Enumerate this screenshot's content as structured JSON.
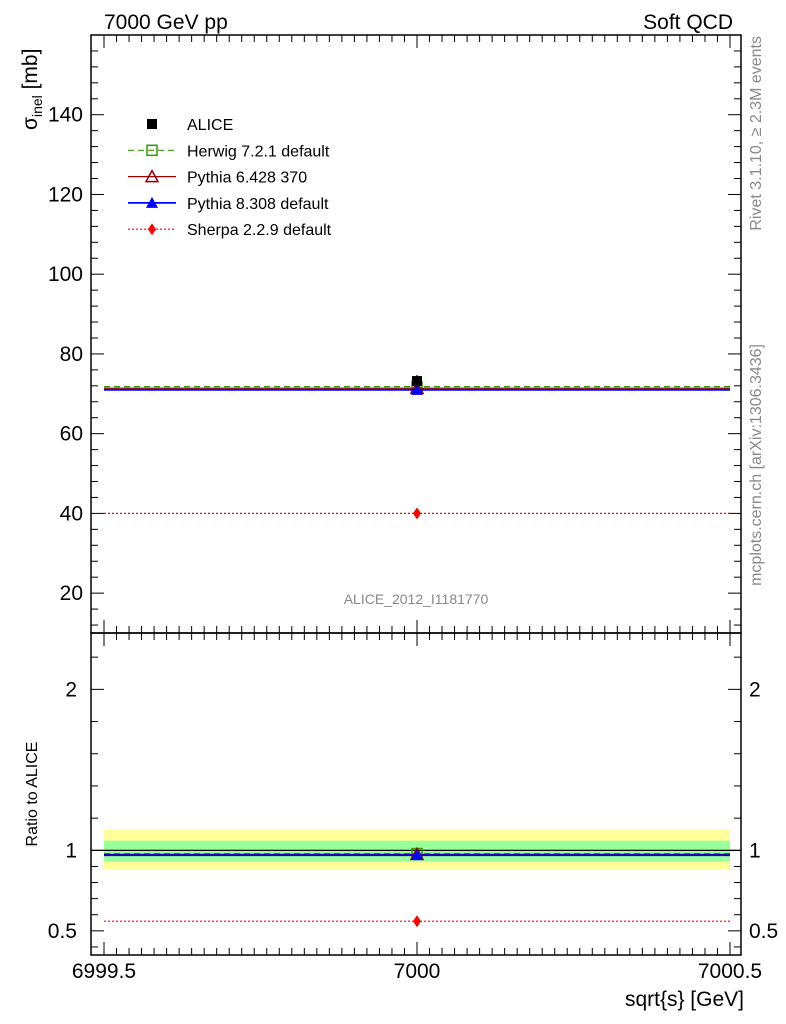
{
  "header": {
    "left": "7000 GeV pp",
    "right": "Soft QCD"
  },
  "side_text": {
    "rivet": "Rivet 3.1.10, ≥ 2.3M events",
    "mcplots": "mcplots.cern.ch [arXiv:1306.3436]"
  },
  "analysis_id": "ALICE_2012_I1181770",
  "colors": {
    "alice": "#000000",
    "herwig": "#339900",
    "pythia6": "#990000",
    "pythia8": "#0000ff",
    "sherpa": "#ff0000",
    "band_outer": "#ffff99",
    "band_inner": "#99ff99"
  },
  "chart_data": [
    {
      "type": "scatter",
      "ylabel_main": "σ",
      "ylabel_sub": "inel",
      "ylabel_unit": " [mb]",
      "xlim": [
        6999.5,
        7000.5
      ],
      "ylim": [
        10,
        160
      ],
      "yticks": [
        20,
        40,
        60,
        80,
        100,
        120,
        140
      ],
      "ytick_labels": [
        "20",
        "40",
        "60",
        "80",
        "100",
        "120",
        "140"
      ],
      "legend": [
        {
          "key": "alice",
          "label": "ALICE"
        },
        {
          "key": "herwig",
          "label": "Herwig 7.2.1 default"
        },
        {
          "key": "pythia6",
          "label": "Pythia 6.428 370"
        },
        {
          "key": "pythia8",
          "label": "Pythia 8.308 default"
        },
        {
          "key": "sherpa",
          "label": "Sherpa 2.2.9 default"
        }
      ],
      "series": [
        {
          "key": "alice",
          "name": "ALICE",
          "x": [
            7000
          ],
          "y": [
            73.2
          ],
          "yerr": [
            1.5
          ]
        },
        {
          "key": "herwig",
          "name": "Herwig 7.2.1 default",
          "x": [
            7000
          ],
          "y": [
            71.8
          ]
        },
        {
          "key": "pythia6",
          "name": "Pythia 6.428 370",
          "x": [
            7000
          ],
          "y": [
            71.4
          ]
        },
        {
          "key": "pythia8",
          "name": "Pythia 8.308 default",
          "x": [
            7000
          ],
          "y": [
            71.0
          ]
        },
        {
          "key": "sherpa",
          "name": "Sherpa 2.2.9 default",
          "x": [
            7000
          ],
          "y": [
            40.0
          ]
        }
      ]
    },
    {
      "type": "scatter",
      "ylabel": "Ratio to ALICE",
      "xlabel": "sqrt{s} [GeV]",
      "xlim": [
        6999.5,
        7000.5
      ],
      "ylim": [
        0.35,
        2.35
      ],
      "xticks": [
        6999.5,
        7000,
        7000.5
      ],
      "xtick_labels": [
        "6999.5",
        "7000",
        "7000.5"
      ],
      "yticks": [
        0.5,
        1,
        2
      ],
      "ytick_labels": [
        "0.5",
        "1",
        "2"
      ],
      "bands": {
        "outer": [
          0.88,
          1.13
        ],
        "inner": [
          0.93,
          1.06
        ]
      },
      "series": [
        {
          "key": "herwig",
          "name": "Herwig 7.2.1 default",
          "x": [
            7000
          ],
          "y": [
            0.98
          ]
        },
        {
          "key": "pythia6",
          "name": "Pythia 6.428 370",
          "x": [
            7000
          ],
          "y": [
            0.975
          ]
        },
        {
          "key": "pythia8",
          "name": "Pythia 8.308 default",
          "x": [
            7000
          ],
          "y": [
            0.97
          ]
        },
        {
          "key": "sherpa",
          "name": "Sherpa 2.2.9 default",
          "x": [
            7000
          ],
          "y": [
            0.56
          ]
        }
      ]
    }
  ]
}
